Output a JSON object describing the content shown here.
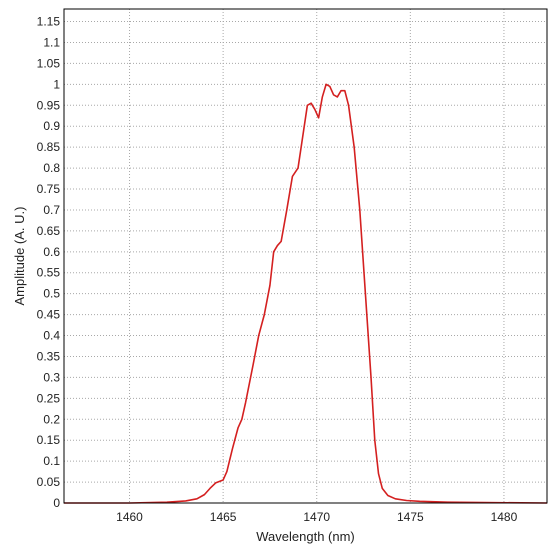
{
  "chart_data": {
    "type": "line",
    "title": "",
    "xlabel": "Wavelength (nm)",
    "ylabel": "Amplitude (A. U.)",
    "xlim": [
      1456.5,
      1482.3
    ],
    "ylim": [
      0,
      1.18
    ],
    "x_ticks": [
      1460,
      1465,
      1470,
      1475,
      1480
    ],
    "x_tick_labels": [
      "1460",
      "1465",
      "1470",
      "1475",
      "1480"
    ],
    "y_ticks": [
      0,
      0.05,
      0.1,
      0.15,
      0.2,
      0.25,
      0.3,
      0.35,
      0.4,
      0.45,
      0.5,
      0.55,
      0.6,
      0.65,
      0.7,
      0.75,
      0.8,
      0.85,
      0.9,
      0.95,
      1,
      1.05,
      1.1,
      1.15
    ],
    "y_tick_labels": [
      "0",
      "0.05",
      "0.1",
      "0.15",
      "0.2",
      "0.25",
      "0.3",
      "0.35",
      "0.4",
      "0.45",
      "0.5",
      "0.55",
      "0.6",
      "0.65",
      "0.7",
      "0.75",
      "0.8",
      "0.85",
      "0.9",
      "0.95",
      "1",
      "1.05",
      "1.1",
      "1.15"
    ],
    "grid": true,
    "legend": "none",
    "series": [
      {
        "color": "#d42020",
        "x": [
          1456.5,
          1460,
          1462,
          1463,
          1463.6,
          1464,
          1464.3,
          1464.6,
          1465,
          1465.2,
          1465.5,
          1465.8,
          1466,
          1466.2,
          1466.6,
          1466.9,
          1467.2,
          1467.5,
          1467.7,
          1467.9,
          1468.1,
          1468.4,
          1468.7,
          1469,
          1469.2,
          1469.5,
          1469.7,
          1469.9,
          1470.1,
          1470.3,
          1470.5,
          1470.7,
          1470.9,
          1471.1,
          1471.3,
          1471.5,
          1471.7,
          1472,
          1472.3,
          1472.6,
          1472.9,
          1473.1,
          1473.3,
          1473.5,
          1473.8,
          1474.2,
          1474.8,
          1475.5,
          1477,
          1479,
          1482.3
        ],
        "y": [
          0.0,
          0.0,
          0.002,
          0.005,
          0.01,
          0.02,
          0.035,
          0.048,
          0.055,
          0.075,
          0.13,
          0.18,
          0.2,
          0.24,
          0.33,
          0.4,
          0.45,
          0.52,
          0.6,
          0.615,
          0.625,
          0.7,
          0.78,
          0.8,
          0.86,
          0.95,
          0.955,
          0.94,
          0.92,
          0.97,
          1.0,
          0.995,
          0.975,
          0.97,
          0.985,
          0.985,
          0.95,
          0.85,
          0.7,
          0.5,
          0.3,
          0.15,
          0.07,
          0.035,
          0.018,
          0.01,
          0.006,
          0.004,
          0.002,
          0.001,
          0.0
        ]
      }
    ]
  }
}
